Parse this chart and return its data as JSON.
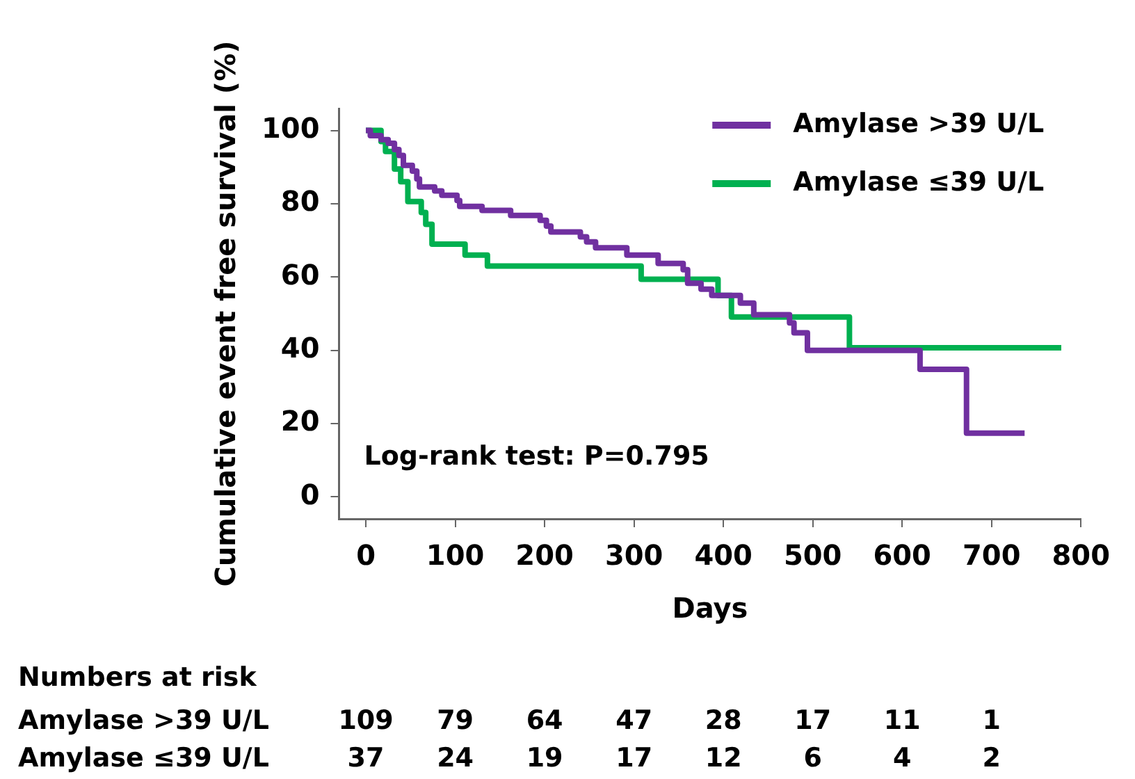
{
  "chart_data": {
    "type": "step",
    "xlabel": "Days",
    "ylabel": "Cumulative event free survival (%)",
    "xlim": [
      -30,
      800
    ],
    "xticks": [
      0,
      100,
      200,
      300,
      400,
      500,
      600,
      700,
      800
    ],
    "ylim": [
      -6,
      106
    ],
    "yticks": [
      0,
      20,
      40,
      60,
      80,
      100
    ],
    "legend": "top right",
    "series": [
      {
        "name": "Amylase >39 U/L",
        "color": "#7030a0",
        "x": [
          0,
          5,
          17,
          25,
          32,
          37,
          42,
          52,
          57,
          60,
          77,
          85,
          102,
          105,
          130,
          162,
          195,
          202,
          207,
          240,
          247,
          257,
          292,
          327,
          355,
          360,
          375,
          387,
          419,
          434,
          474,
          479,
          494,
          620,
          672,
          737
        ],
        "values": [
          100,
          98.6,
          97.5,
          96.5,
          94.8,
          93.2,
          90.5,
          88.9,
          86.8,
          84.6,
          83.5,
          82.3,
          80.9,
          79.3,
          78.2,
          76.8,
          75.5,
          73.9,
          72.3,
          71,
          69.6,
          68,
          66,
          63.7,
          62,
          58.3,
          56.7,
          55,
          52.9,
          49.7,
          47.5,
          44.8,
          40,
          34.8,
          17.4,
          17.4
        ]
      },
      {
        "name": "Amylase ≤39 U/L",
        "color": "#00b050",
        "x": [
          0,
          17,
          22,
          32,
          39,
          47,
          62,
          67,
          74,
          111,
          136,
          308,
          394,
          409,
          541,
          778
        ],
        "values": [
          100,
          97,
          94.3,
          89.5,
          86,
          80.6,
          77.6,
          74.4,
          69,
          66,
          63,
          59.4,
          55,
          49.1,
          40.7,
          40.7
        ]
      }
    ],
    "annotations": [
      "Log-rank test: P=0.795",
      "Numbers at risk",
      "Amylase >39 U/L",
      "109",
      "79",
      "64",
      "47",
      "28",
      "17",
      "11",
      "1",
      "Amylase ≤39 U/L",
      "37",
      "24",
      "19",
      "17",
      "12",
      "6",
      "4",
      "2"
    ]
  }
}
